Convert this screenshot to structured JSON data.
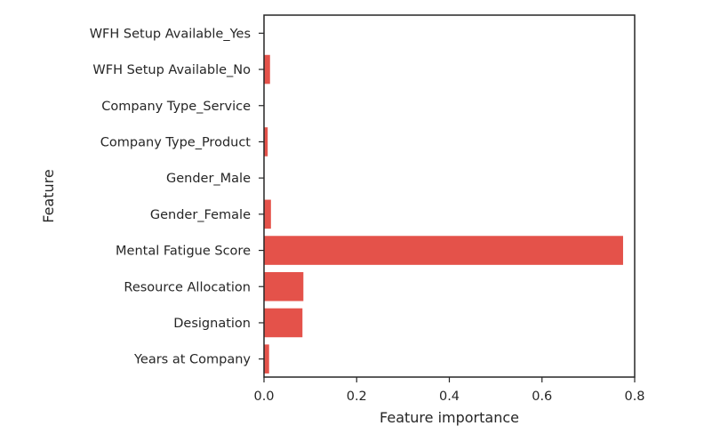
{
  "chart_data": {
    "type": "bar",
    "orientation": "horizontal",
    "title": "",
    "xlabel": "Feature importance",
    "ylabel": "Feature",
    "xlim": [
      0,
      0.8
    ],
    "xticks": [
      "0.0",
      "0.2",
      "0.4",
      "0.6",
      "0.8"
    ],
    "grid": false,
    "categories": [
      "Years at Company",
      "Designation",
      "Resource Allocation",
      "Mental Fatigue Score",
      "Gender_Female",
      "Gender_Male",
      "Company Type_Product",
      "Company Type_Service",
      "WFH Setup Available_No",
      "WFH Setup Available_Yes"
    ],
    "values": [
      0.011,
      0.083,
      0.085,
      0.775,
      0.015,
      0.001,
      0.008,
      0.001,
      0.013,
      0.001
    ],
    "bar_color": "#e4524a",
    "axis_color": "#262626"
  }
}
